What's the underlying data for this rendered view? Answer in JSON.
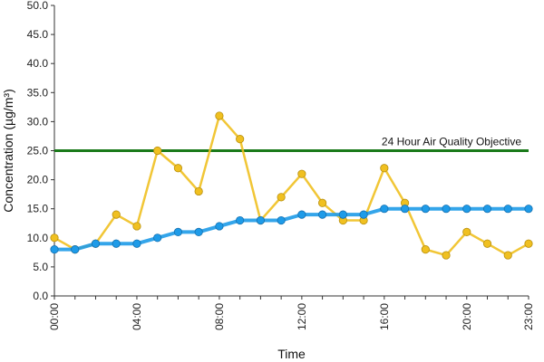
{
  "chart_data": {
    "type": "line",
    "xlabel": "Time",
    "ylabel": "Concentration (µg/m³)",
    "ylim": [
      0,
      50
    ],
    "y_ticks": [
      "0.0",
      "5.0",
      "10.0",
      "15.0",
      "20.0",
      "25.0",
      "30.0",
      "35.0",
      "40.0",
      "45.0",
      "50.0"
    ],
    "x_tick_labels": [
      "00:00",
      "04:00",
      "08:00",
      "12:00",
      "16:00",
      "20:00",
      "23:00"
    ],
    "x_tick_hours": [
      0,
      4,
      8,
      12,
      16,
      20,
      23
    ],
    "grid": false,
    "legend": "none",
    "x": [
      "00:00",
      "01:00",
      "02:00",
      "03:00",
      "04:00",
      "05:00",
      "06:00",
      "07:00",
      "08:00",
      "09:00",
      "10:00",
      "11:00",
      "12:00",
      "13:00",
      "14:00",
      "15:00",
      "16:00",
      "17:00",
      "18:00",
      "19:00",
      "20:00",
      "21:00",
      "22:00",
      "23:00"
    ],
    "series": [
      {
        "color": "#f0c020",
        "values": [
          10,
          8,
          9,
          14,
          12,
          25,
          22,
          18,
          31,
          27,
          13,
          17,
          21,
          16,
          13,
          13,
          22,
          16,
          8,
          7,
          11,
          9,
          7,
          9
        ]
      },
      {
        "color": "#1e9be8",
        "values": [
          8,
          8,
          9,
          9,
          9,
          10,
          11,
          11,
          12,
          13,
          13,
          13,
          14,
          14,
          14,
          14,
          15,
          15,
          15,
          15,
          15,
          15,
          15,
          15
        ]
      }
    ],
    "reference_line": {
      "value": 25,
      "label": "24 Hour Air Quality Objective",
      "color": "#1a7a1a"
    }
  }
}
